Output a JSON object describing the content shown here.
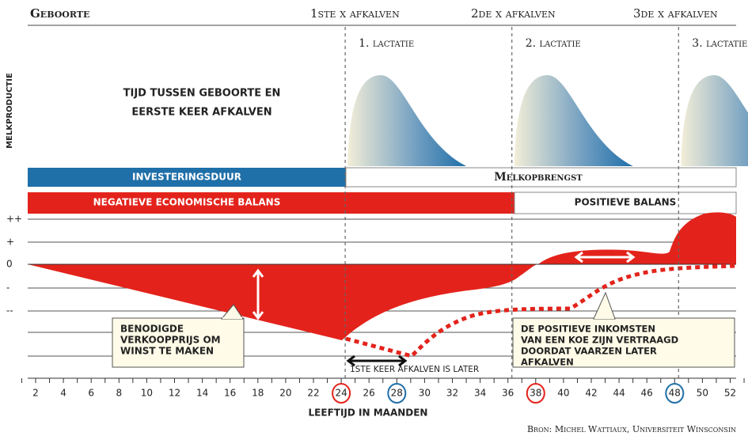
{
  "header": {
    "birth": "Geboorte",
    "calving1": "1ste x afkalven",
    "calving2": "2de x afkalven",
    "calving3": "3de x afkalven"
  },
  "lactations": [
    "1. lactatie",
    "2. lactatie",
    "3. lactatie"
  ],
  "y_title": "MELKPRODUCTIE",
  "intro": [
    "TIJD TUSSEN GEBOORTE EN",
    "EERSTE KEER AFKALVEN"
  ],
  "bars": {
    "investment": "INVESTERINGSDUUR",
    "milk": "Melkopbrengst",
    "negative": "NEGATIEVE ECONOMISCHE BALANS",
    "positive": "POSITIEVE BALANS"
  },
  "levels": [
    "++",
    "+",
    "0",
    "-",
    "--"
  ],
  "callouts": {
    "price": [
      "BENODIGDE",
      "VERKOOPPRIJS OM",
      "WINST TE MAKEN"
    ],
    "income": [
      "DE POSITIEVE INKOMSTEN",
      "VAN EEN KOE ZIJN VERTRAAGD",
      "DOORDAT VAARZEN LATER",
      "AFKALVEN"
    ],
    "later": "1STE KEER AFKALVEN IS LATER"
  },
  "axis": {
    "title": "LEEFTIJD IN MAANDEN",
    "ticks": [
      2,
      4,
      6,
      8,
      10,
      12,
      14,
      16,
      18,
      20,
      22,
      24,
      26,
      28,
      30,
      32,
      34,
      36,
      38,
      40,
      42,
      44,
      46,
      48,
      50,
      52
    ],
    "highlight": [
      {
        "value": 24,
        "color": "#e3231b"
      },
      {
        "value": 28,
        "color": "#1f6fa8"
      },
      {
        "value": 38,
        "color": "#e3231b"
      },
      {
        "value": 48,
        "color": "#1f6fa8"
      }
    ]
  },
  "source": "Bron: Michel Wattiaux, Universiteit Winsconsin"
}
